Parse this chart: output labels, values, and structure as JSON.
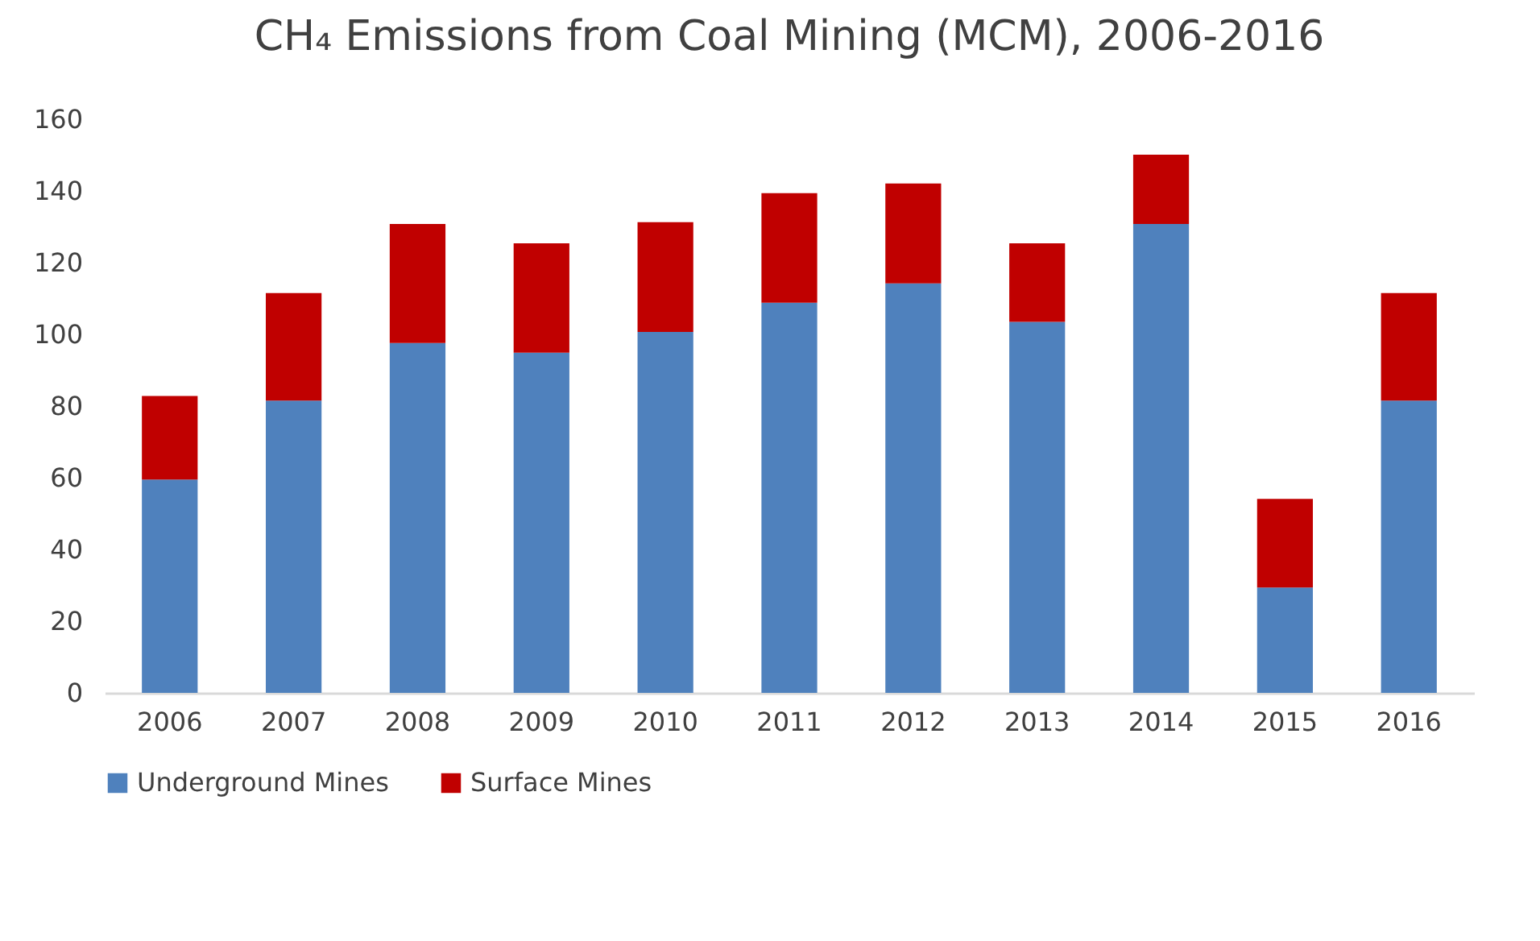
{
  "chart_data": {
    "type": "bar",
    "title": "CH₄ Emissions from Coal Mining (MCM), 2006-2016",
    "categories": [
      "2006",
      "2007",
      "2008",
      "2009",
      "2010",
      "2011",
      "2012",
      "2013",
      "2014",
      "2015",
      "2016"
    ],
    "stacked": true,
    "series": [
      {
        "name": "Underground Mines",
        "color": "#4f81bd",
        "values": [
          59.5,
          81.5,
          97.6,
          94.9,
          100.7,
          108.8,
          114.2,
          103.5,
          130.8,
          29.4,
          81.5
        ]
      },
      {
        "name": "Surface Mines",
        "color": "#c00000",
        "values": [
          23.3,
          30,
          33.2,
          30.5,
          30.6,
          30.6,
          27.9,
          21.9,
          19.3,
          24.7,
          30
        ]
      }
    ],
    "ylim": [
      0,
      160
    ],
    "yticks": [
      0,
      20,
      40,
      60,
      80,
      100,
      120,
      140,
      160
    ],
    "grid": false,
    "legend": "bottom"
  }
}
